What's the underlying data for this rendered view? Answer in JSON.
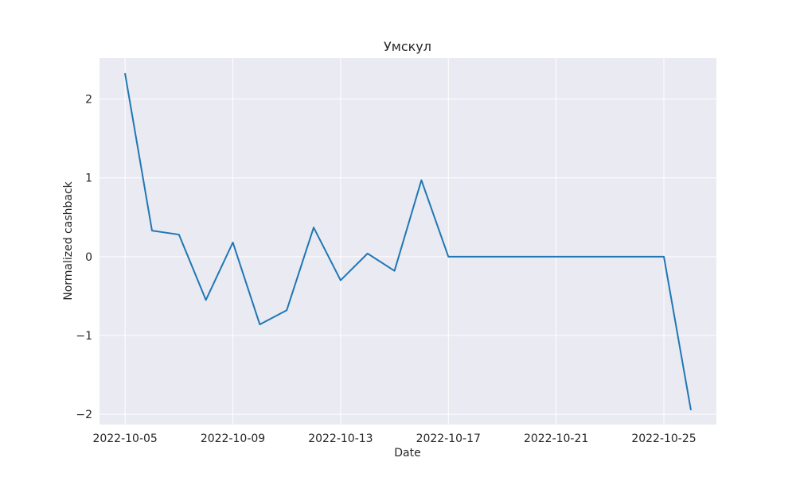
{
  "chart_data": {
    "type": "line",
    "title": "Умскул",
    "xlabel": "Date",
    "ylabel": "Normalized cashback",
    "x": [
      "2022-10-05",
      "2022-10-06",
      "2022-10-07",
      "2022-10-08",
      "2022-10-09",
      "2022-10-10",
      "2022-10-11",
      "2022-10-12",
      "2022-10-13",
      "2022-10-14",
      "2022-10-15",
      "2022-10-16",
      "2022-10-17",
      "2022-10-18",
      "2022-10-19",
      "2022-10-20",
      "2022-10-21",
      "2022-10-22",
      "2022-10-23",
      "2022-10-24",
      "2022-10-25",
      "2022-10-26"
    ],
    "series": [
      {
        "values": [
          2.32,
          0.33,
          0.28,
          -0.55,
          0.18,
          -0.86,
          -0.68,
          0.37,
          -0.3,
          0.04,
          -0.18,
          0.97,
          0.0,
          0.0,
          0.0,
          0.0,
          0.0,
          0.0,
          0.0,
          0.0,
          0.0,
          -1.94
        ],
        "color": "#1f77b4"
      }
    ],
    "xticks": [
      "2022-10-05",
      "2022-10-09",
      "2022-10-13",
      "2022-10-17",
      "2022-10-21",
      "2022-10-25"
    ],
    "yticks": [
      -2,
      -1,
      0,
      1,
      2
    ],
    "ytick_labels": [
      "−2",
      "−1",
      "0",
      "1",
      "2"
    ],
    "xlim": [
      "2022-10-04",
      "2022-10-27"
    ],
    "ylim": [
      -2.13,
      2.52
    ],
    "grid": true,
    "background": "#eaeaf2",
    "grid_color": "#ffffff"
  }
}
